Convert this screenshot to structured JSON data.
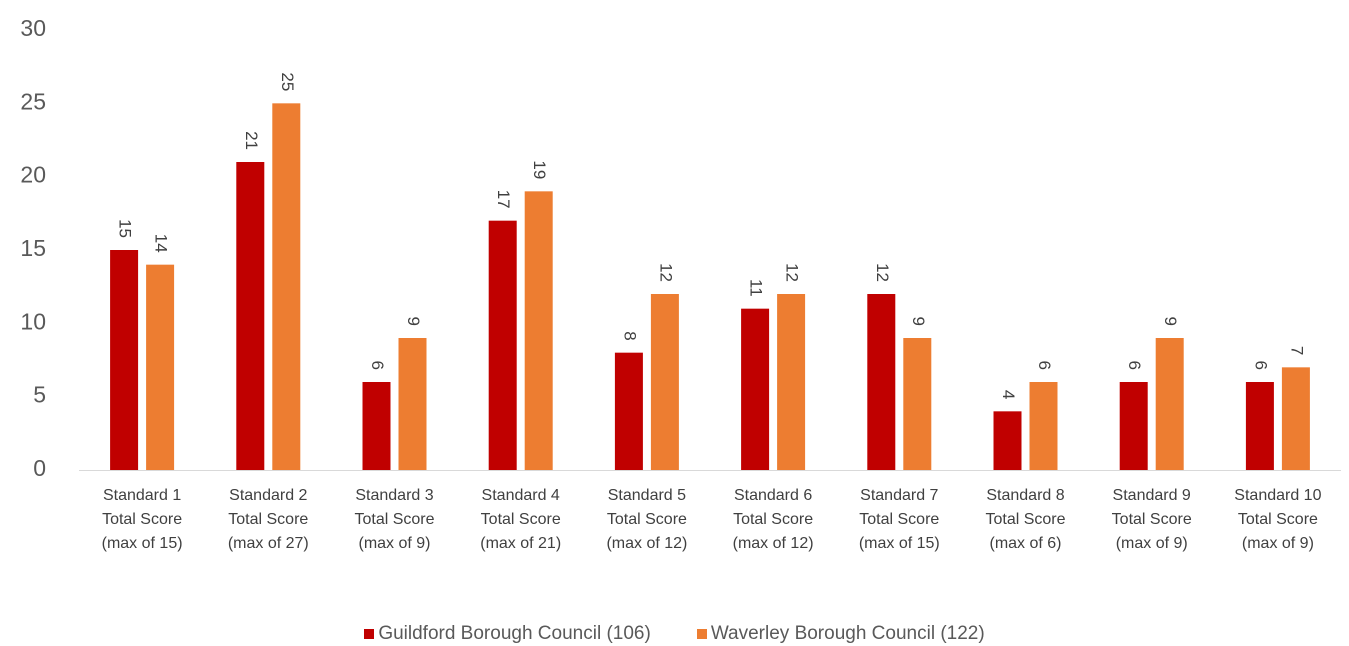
{
  "chart_data": {
    "type": "bar",
    "title": "",
    "xlabel": "",
    "ylabel": "",
    "ylim": [
      0,
      30
    ],
    "yticks": [
      0,
      5,
      10,
      15,
      20,
      25,
      30
    ],
    "grid": false,
    "legend_position": "bottom",
    "categories": [
      [
        "Standard 1",
        "Total Score",
        "(max of 15)"
      ],
      [
        "Standard 2",
        "Total Score",
        "(max of 27)"
      ],
      [
        "Standard 3",
        "Total Score",
        "(max of 9)"
      ],
      [
        "Standard 4",
        "Total Score",
        "(max of 21)"
      ],
      [
        "Standard 5",
        "Total Score",
        "(max of 12)"
      ],
      [
        "Standard 6",
        "Total Score",
        "(max of 12)"
      ],
      [
        "Standard 7",
        "Total Score",
        "(max of 15)"
      ],
      [
        "Standard 8",
        "Total Score",
        "(max of 6)"
      ],
      [
        "Standard 9",
        "Total Score",
        "(max of 9)"
      ],
      [
        "Standard 10",
        "Total Score",
        "(max of 9)"
      ]
    ],
    "series": [
      {
        "name": "Guildford Borough Council (106)",
        "color": "#c00000",
        "values": [
          15,
          21,
          6,
          17,
          8,
          11,
          12,
          4,
          6,
          6
        ]
      },
      {
        "name": "Waverley Borough Council (122)",
        "color": "#ed7d31",
        "values": [
          14,
          25,
          9,
          19,
          12,
          12,
          9,
          6,
          9,
          7
        ]
      }
    ]
  }
}
